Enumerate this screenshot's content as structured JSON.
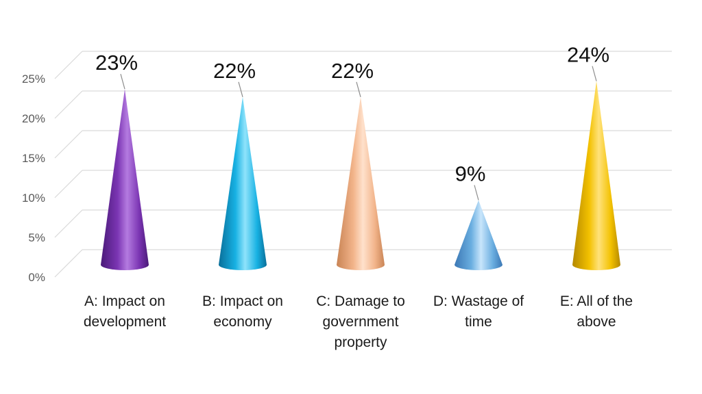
{
  "chart_data": {
    "type": "bar",
    "shape": "cone-3d",
    "categories": [
      [
        "A: Impact on",
        "development"
      ],
      [
        "B: Impact on",
        "economy"
      ],
      [
        "C: Damage to",
        "government",
        "property"
      ],
      [
        "D: Wastage of",
        "time"
      ],
      [
        "E: All of the",
        "above"
      ]
    ],
    "values": [
      23,
      22,
      22,
      9,
      24
    ],
    "data_labels": [
      "23%",
      "22%",
      "22%",
      "9%",
      "24%"
    ],
    "y_ticks": [
      "0%",
      "5%",
      "10%",
      "15%",
      "20%",
      "25%"
    ],
    "ylim": [
      0,
      25
    ],
    "grid": true,
    "legend": "none",
    "colors": [
      "#7b35b3",
      "#17b1e3",
      "#f2b48a",
      "#6aaee0",
      "#f3c100"
    ],
    "colors_light": [
      "#b47be0",
      "#8fe3fb",
      "#ffe1cc",
      "#c8e5fb",
      "#ffe27a"
    ],
    "colors_dark": [
      "#4a1a78",
      "#0a6f99",
      "#c98455",
      "#3c78b5",
      "#b58900"
    ]
  }
}
